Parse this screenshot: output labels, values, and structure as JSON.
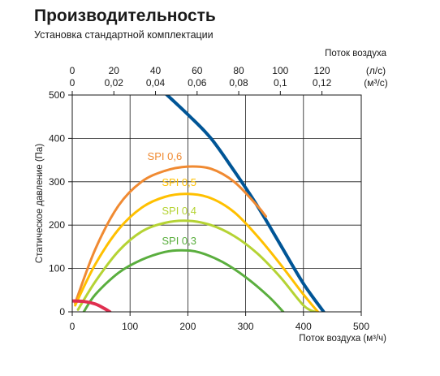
{
  "header": {
    "title": "Производительность",
    "subtitle": "Установка стандартной комплектации"
  },
  "chart_data": {
    "type": "line",
    "xlabel": "Поток воздуха (м³/ч)",
    "ylabel": "Статическое давление (Па)",
    "top_axis_title": "Поток воздуха",
    "xlim": [
      0,
      500
    ],
    "ylim": [
      0,
      500
    ],
    "xticks": [
      0,
      100,
      200,
      300,
      400,
      500
    ],
    "yticks": [
      0,
      100,
      200,
      300,
      400,
      500
    ],
    "top_axes": [
      {
        "unit": "(л/с)",
        "ticks": [
          "0",
          "20",
          "40",
          "60",
          "80",
          "100",
          "120"
        ],
        "values": [
          0,
          20,
          40,
          60,
          80,
          100,
          120
        ],
        "to_m3h": 3.6
      },
      {
        "unit": "(м³/с)",
        "ticks": [
          "0",
          "0,02",
          "0,04",
          "0,06",
          "0,08",
          "0,1",
          "0,12"
        ],
        "values": [
          0,
          0.02,
          0.04,
          0.06,
          0.08,
          0.1,
          0.12
        ],
        "to_m3h": 3600
      }
    ],
    "grid": true,
    "series": [
      {
        "name": "",
        "color": "#005596",
        "width": 4,
        "points": [
          [
            160,
            505
          ],
          [
            200,
            455
          ],
          [
            240,
            400
          ],
          [
            280,
            325
          ],
          [
            320,
            245
          ],
          [
            360,
            155
          ],
          [
            400,
            65
          ],
          [
            435,
            0
          ]
        ]
      },
      {
        "name": "SPI 0,6",
        "color": "#f08a32",
        "width": 3,
        "label_at": [
          130,
          350
        ],
        "points": [
          [
            5,
            20
          ],
          [
            40,
            145
          ],
          [
            80,
            245
          ],
          [
            120,
            300
          ],
          [
            160,
            325
          ],
          [
            200,
            335
          ],
          [
            240,
            330
          ],
          [
            280,
            300
          ],
          [
            320,
            245
          ],
          [
            335,
            220
          ]
        ]
      },
      {
        "name": "SPI 0,5",
        "color": "#ffc000",
        "width": 3,
        "label_at": [
          155,
          290
        ],
        "points": [
          [
            5,
            15
          ],
          [
            40,
            110
          ],
          [
            80,
            190
          ],
          [
            120,
            240
          ],
          [
            160,
            265
          ],
          [
            200,
            272
          ],
          [
            240,
            262
          ],
          [
            280,
            230
          ],
          [
            320,
            175
          ],
          [
            360,
            110
          ],
          [
            400,
            40
          ],
          [
            425,
            0
          ]
        ]
      },
      {
        "name": "SPI 0,4",
        "color": "#b5d334",
        "width": 3,
        "label_at": [
          155,
          225
        ],
        "points": [
          [
            10,
            5
          ],
          [
            40,
            70
          ],
          [
            80,
            140
          ],
          [
            120,
            185
          ],
          [
            160,
            205
          ],
          [
            200,
            210
          ],
          [
            240,
            200
          ],
          [
            280,
            175
          ],
          [
            320,
            135
          ],
          [
            360,
            80
          ],
          [
            400,
            15
          ],
          [
            420,
            0
          ]
        ]
      },
      {
        "name": "SPI 0,3",
        "color": "#5aae3e",
        "width": 3,
        "label_at": [
          155,
          155
        ],
        "points": [
          [
            20,
            0
          ],
          [
            40,
            40
          ],
          [
            80,
            90
          ],
          [
            120,
            120
          ],
          [
            160,
            138
          ],
          [
            190,
            142
          ],
          [
            220,
            137
          ],
          [
            260,
            115
          ],
          [
            300,
            80
          ],
          [
            340,
            35
          ],
          [
            365,
            0
          ]
        ]
      },
      {
        "name": "",
        "color": "#e02f4f",
        "width": 4,
        "points": [
          [
            0,
            25
          ],
          [
            20,
            24
          ],
          [
            40,
            18
          ],
          [
            55,
            8
          ],
          [
            65,
            0
          ]
        ]
      }
    ]
  }
}
